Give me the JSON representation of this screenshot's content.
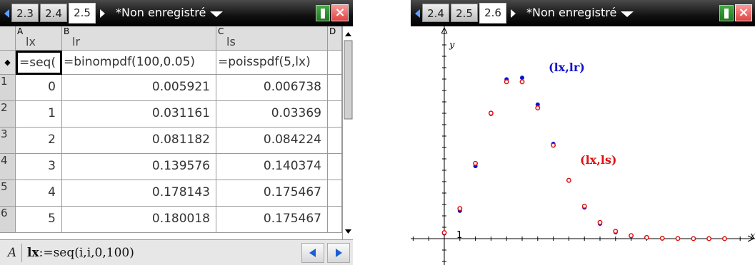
{
  "left_screen": {
    "tabs": [
      "2.3",
      "2.4",
      "2.5"
    ],
    "active_tab": "2.5",
    "doc_title": "*Non enregistré",
    "columns": [
      {
        "letter": "A",
        "name": "lx",
        "formula": "=seq("
      },
      {
        "letter": "B",
        "name": "lr",
        "formula": "=binompdf(100,0.05)"
      },
      {
        "letter": "C",
        "name": "ls",
        "formula": "=poisspdf(5,lx)"
      },
      {
        "letter": "D",
        "name": "",
        "formula": ""
      }
    ],
    "formula_row_marker": "◆",
    "rows": [
      {
        "num": "1",
        "lx": "0",
        "lr": "0.005921",
        "ls": "0.006738"
      },
      {
        "num": "2",
        "lx": "1",
        "lr": "0.031161",
        "ls": "0.03369"
      },
      {
        "num": "3",
        "lx": "2",
        "lr": "0.081182",
        "ls": "0.084224"
      },
      {
        "num": "4",
        "lx": "3",
        "lr": "0.139576",
        "ls": "0.140374"
      },
      {
        "num": "5",
        "lx": "4",
        "lr": "0.178143",
        "ls": "0.175467"
      },
      {
        "num": "6",
        "lx": "5",
        "lr": "0.180018",
        "ls": "0.175467"
      }
    ],
    "cell_ref": "A",
    "entry_var": "lx",
    "entry_expr": ":=seq(i,i,0,100)"
  },
  "right_screen": {
    "tabs": [
      "2.4",
      "2.5",
      "2.6"
    ],
    "active_tab": "2.6",
    "doc_title": "*Non enregistré",
    "label_lr": "(lx,lr)",
    "label_ls": "(lx,ls)",
    "y_axis_label": "y",
    "x_axis_label": "x",
    "y_tick_label": "1",
    "colors": {
      "lr": "#1010d0",
      "ls": "#e01010"
    }
  },
  "chart_data": {
    "type": "scatter",
    "title": "",
    "x_label": "x",
    "y_label": "y",
    "xlim": [
      0,
      19
    ],
    "ylim": [
      -0.01,
      0.25
    ],
    "series": [
      {
        "name": "(lx,lr)",
        "x": [
          0,
          1,
          2,
          3,
          4,
          5,
          6,
          7,
          8,
          9,
          10,
          11,
          12,
          13,
          14,
          15,
          16,
          17,
          18
        ],
        "y": [
          0.005921,
          0.031161,
          0.081182,
          0.139576,
          0.178143,
          0.180018,
          0.150015,
          0.106026,
          0.064871,
          0.034901,
          0.016715,
          0.007198,
          0.002809,
          0.001,
          0.000327,
          9.9e-05,
          2.8e-05,
          7e-06,
          2e-06
        ]
      },
      {
        "name": "(lx,ls)",
        "x": [
          0,
          1,
          2,
          3,
          4,
          5,
          6,
          7,
          8,
          9,
          10,
          11,
          12,
          13,
          14,
          15,
          16,
          17,
          18
        ],
        "y": [
          0.006738,
          0.03369,
          0.084224,
          0.140374,
          0.175467,
          0.175467,
          0.146223,
          0.104445,
          0.065278,
          0.036266,
          0.018133,
          0.008242,
          0.003434,
          0.001321,
          0.000472,
          0.000157,
          4.9e-05,
          1.4e-05,
          4e-06
        ]
      }
    ]
  }
}
